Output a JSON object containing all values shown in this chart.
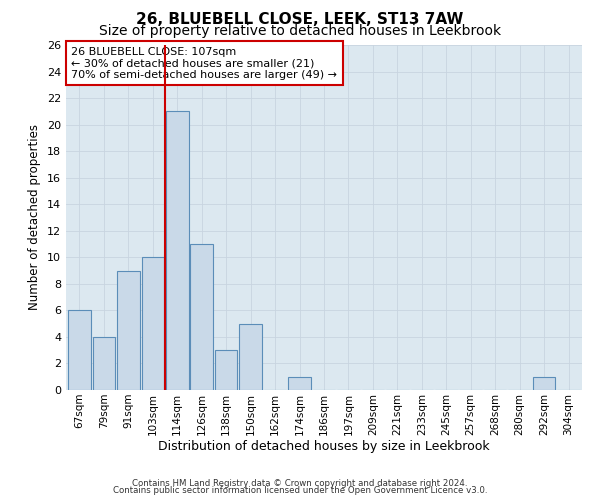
{
  "title": "26, BLUEBELL CLOSE, LEEK, ST13 7AW",
  "subtitle": "Size of property relative to detached houses in Leekbrook",
  "xlabel": "Distribution of detached houses by size in Leekbrook",
  "ylabel": "Number of detached properties",
  "bin_labels": [
    "67sqm",
    "79sqm",
    "91sqm",
    "103sqm",
    "114sqm",
    "126sqm",
    "138sqm",
    "150sqm",
    "162sqm",
    "174sqm",
    "186sqm",
    "197sqm",
    "209sqm",
    "221sqm",
    "233sqm",
    "245sqm",
    "257sqm",
    "268sqm",
    "280sqm",
    "292sqm",
    "304sqm"
  ],
  "bar_heights": [
    6,
    4,
    9,
    10,
    21,
    11,
    3,
    5,
    0,
    1,
    0,
    0,
    0,
    0,
    0,
    0,
    0,
    0,
    0,
    1,
    0
  ],
  "bar_color": "#c9d9e8",
  "bar_edge_color": "#5b8db8",
  "red_line_x": 3.5,
  "annotation_text": "26 BLUEBELL CLOSE: 107sqm\n← 30% of detached houses are smaller (21)\n70% of semi-detached houses are larger (49) →",
  "annotation_box_color": "#ffffff",
  "annotation_box_edge": "#cc0000",
  "ylim": [
    0,
    26
  ],
  "yticks": [
    0,
    2,
    4,
    6,
    8,
    10,
    12,
    14,
    16,
    18,
    20,
    22,
    24,
    26
  ],
  "grid_color": "#c8d4e0",
  "background_color": "#dce8f0",
  "footer_line1": "Contains HM Land Registry data © Crown copyright and database right 2024.",
  "footer_line2": "Contains public sector information licensed under the Open Government Licence v3.0.",
  "title_fontsize": 11,
  "subtitle_fontsize": 10,
  "xlabel_fontsize": 9,
  "ylabel_fontsize": 8.5,
  "annotation_fontsize": 8
}
